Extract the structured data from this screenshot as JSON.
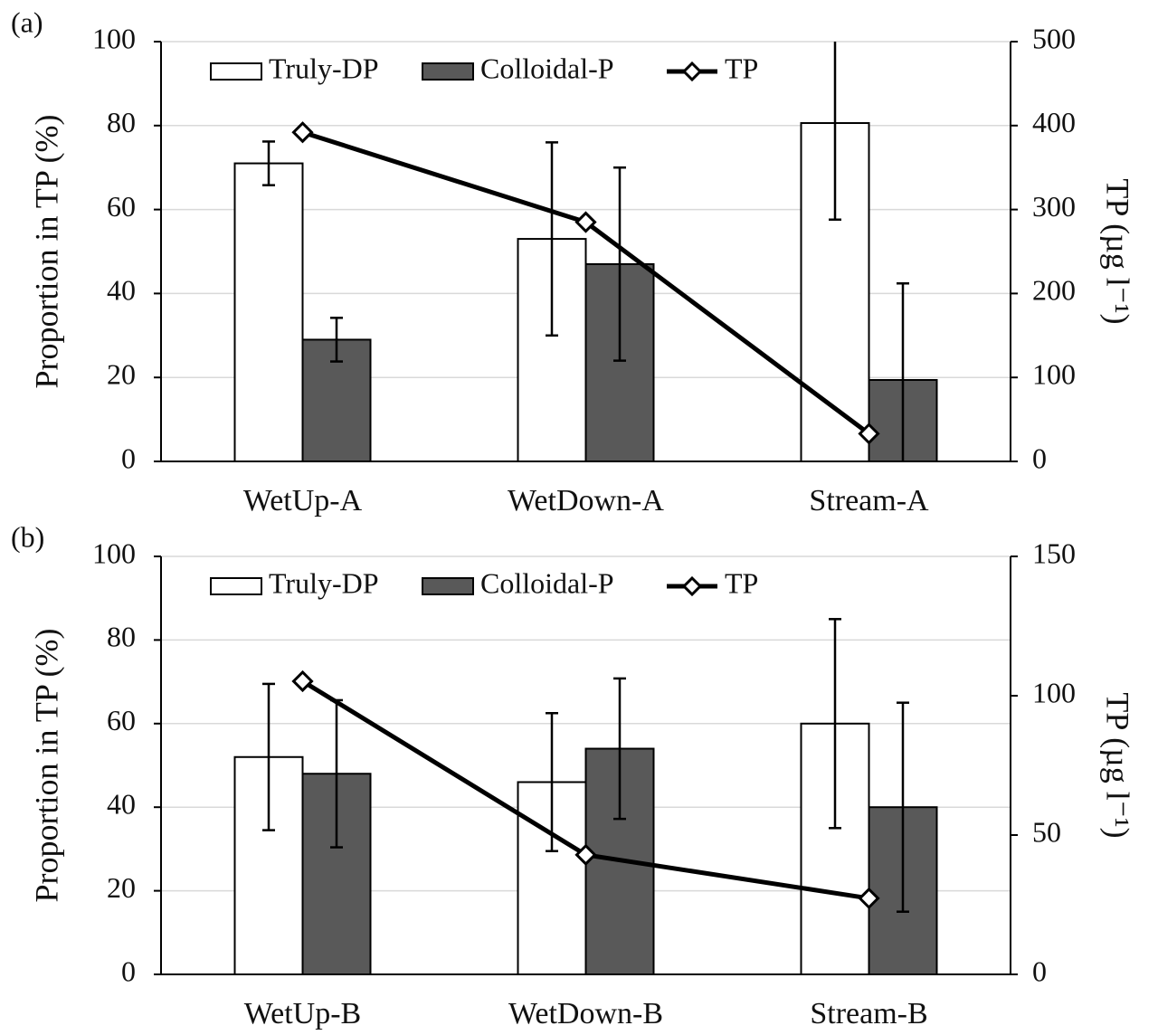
{
  "chart_data": [
    {
      "type": "bar",
      "panel_label": "(a)",
      "categories": [
        "WetUp-A",
        "WetDown-A",
        "Stream-A"
      ],
      "ylabel": "Proportion in TP (%)",
      "y2label": "TP (µg l⁻¹)",
      "ylim": [
        0,
        100
      ],
      "yticks": [
        0,
        20,
        40,
        60,
        80,
        100
      ],
      "y2lim": [
        0,
        500
      ],
      "y2ticks": [
        0,
        100,
        200,
        300,
        400,
        500
      ],
      "grid": true,
      "series": [
        {
          "name": "Truly-DP",
          "type": "bar",
          "color": "#ffffff",
          "values": [
            71,
            53,
            80.6
          ],
          "errors": [
            5.2,
            23,
            23
          ]
        },
        {
          "name": "Colloidal-P",
          "type": "bar",
          "color": "#595959",
          "values": [
            29,
            47,
            19.4
          ],
          "errors": [
            5.2,
            23,
            23
          ]
        },
        {
          "name": "TP",
          "type": "line",
          "axis": "y2",
          "color": "#000000",
          "marker": "diamond",
          "values": [
            392,
            285,
            33
          ]
        }
      ]
    },
    {
      "type": "bar",
      "panel_label": "(b)",
      "categories": [
        "WetUp-B",
        "WetDown-B",
        "Stream-B"
      ],
      "ylabel": "Proportion in TP (%)",
      "y2label": "TP (µg l⁻¹)",
      "ylim": [
        0,
        100
      ],
      "yticks": [
        0,
        20,
        40,
        60,
        80,
        100
      ],
      "y2lim": [
        0,
        150
      ],
      "y2ticks": [
        0,
        50,
        100,
        150
      ],
      "grid": true,
      "series": [
        {
          "name": "Truly-DP",
          "type": "bar",
          "color": "#ffffff",
          "values": [
            52,
            46,
            60
          ],
          "errors": [
            17.5,
            16.5,
            25
          ]
        },
        {
          "name": "Colloidal-P",
          "type": "bar",
          "color": "#595959",
          "values": [
            48,
            54,
            40
          ],
          "errors": [
            17.6,
            16.8,
            25
          ]
        },
        {
          "name": "TP",
          "type": "line",
          "axis": "y2",
          "color": "#000000",
          "marker": "diamond",
          "values": [
            105.2,
            42.9,
            27.3
          ]
        }
      ]
    }
  ]
}
